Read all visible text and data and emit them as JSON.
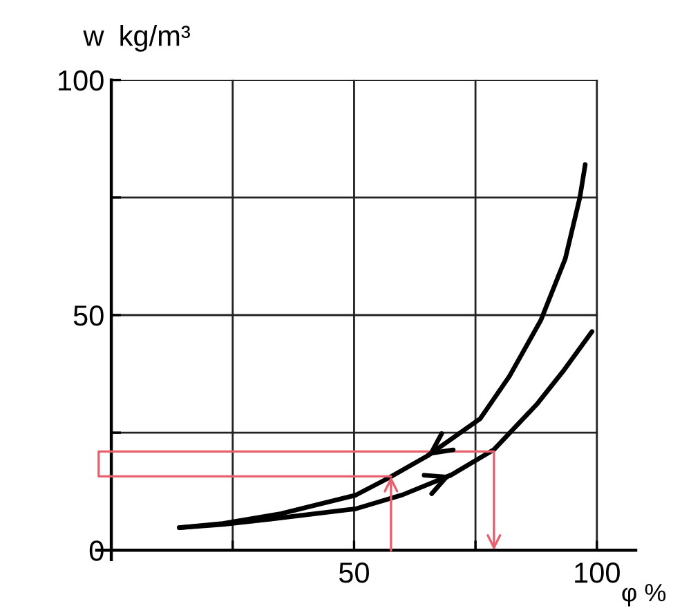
{
  "chart_data": {
    "type": "line",
    "ylabel": "w",
    "xlabel": "φ %",
    "annotations": [
      "kg/m³"
    ],
    "xlim": [
      -3,
      108
    ],
    "ylim": [
      -2,
      100
    ],
    "xticks": [
      {
        "value": 0,
        "label": null
      },
      {
        "value": 25,
        "label": null
      },
      50,
      {
        "value": 75,
        "label": null
      },
      100
    ],
    "yticks": [
      0,
      {
        "value": 25,
        "label": null
      },
      50,
      {
        "value": 75,
        "label": null
      },
      100
    ],
    "grid": true,
    "series": [
      {
        "color": "#000000",
        "x": [
          97.6,
          96.5,
          93.5,
          88.5,
          82,
          76,
          65,
          57,
          50.3,
          35,
          23,
          14
        ],
        "values": [
          82,
          75,
          62,
          49,
          37,
          28,
          20,
          15.3,
          11.7,
          7.8,
          5.7,
          4.8
        ]
      },
      {
        "color": "#000000",
        "x": [
          14,
          23,
          32.6,
          50.3,
          60,
          70,
          78.8,
          87.6,
          93,
          99
        ],
        "values": [
          4.8,
          5.5,
          6.6,
          8.8,
          11.8,
          16,
          21.4,
          31,
          38,
          46.5
        ]
      },
      {
        "color": "#e8606e",
        "x": [
          57.6,
          -2.6,
          -2.6,
          78.8
        ],
        "values": [
          15.7,
          15.7,
          21,
          21
        ]
      }
    ]
  }
}
